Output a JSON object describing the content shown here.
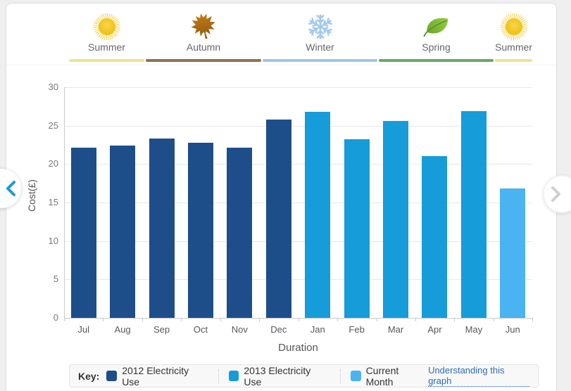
{
  "seasons": {
    "items": [
      {
        "label": "Summer",
        "icon": "sun-icon",
        "underline_color": "#ede289"
      },
      {
        "label": "Autumn",
        "icon": "maple-leaf-icon",
        "underline_color": "#8c7355"
      },
      {
        "label": "Winter",
        "icon": "snowflake-icon",
        "underline_color": "#9dc7e8"
      },
      {
        "label": "Spring",
        "icon": "leaf-icon",
        "underline_color": "#67a869"
      },
      {
        "label": "Summer",
        "icon": "sun-icon",
        "underline_color": "#ede289"
      }
    ]
  },
  "chart_data": {
    "type": "bar",
    "title": "",
    "categories": [
      "Jul",
      "Aug",
      "Sep",
      "Oct",
      "Nov",
      "Dec",
      "Jan",
      "Feb",
      "Mar",
      "Apr",
      "May",
      "Jun"
    ],
    "series": [
      {
        "name": "2012 Electricity Use",
        "color": "#1d4e89",
        "values": [
          22.1,
          22.4,
          23.3,
          22.8,
          22.1,
          25.8,
          null,
          null,
          null,
          null,
          null,
          null
        ]
      },
      {
        "name": "2013 Electricity Use",
        "color": "#169cd8",
        "values": [
          null,
          null,
          null,
          null,
          null,
          null,
          26.8,
          23.2,
          25.6,
          21.0,
          26.9,
          null
        ]
      },
      {
        "name": "Current Month",
        "color": "#4ab3f2",
        "values": [
          null,
          null,
          null,
          null,
          null,
          null,
          null,
          null,
          null,
          null,
          null,
          16.8
        ]
      }
    ],
    "xlabel": "Duration",
    "ylabel": "Cost(£)",
    "ylim": [
      0,
      30
    ],
    "yticks": [
      0,
      5,
      10,
      15,
      20,
      25,
      30
    ],
    "grid": true,
    "legend_position": "bottom"
  },
  "legend": {
    "key_label": "Key:",
    "items": [
      {
        "label": "2012 Electricity Use",
        "color": "#1d4e89"
      },
      {
        "label": "2013 Electricity Use",
        "color": "#169cd8"
      },
      {
        "label": "Current Month",
        "color": "#4ab3f2"
      }
    ],
    "link_label": "Understanding this graph"
  },
  "nav": {
    "prev_icon": "chevron-left-icon",
    "next_icon": "chevron-right-icon",
    "prev_color": "#1e9ad6",
    "next_color": "#cfcfcf"
  }
}
